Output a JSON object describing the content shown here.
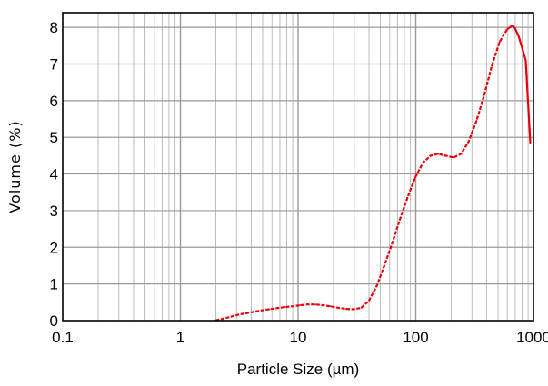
{
  "chart_data": {
    "type": "line",
    "title": "",
    "xlabel": "Particle Size (µm)",
    "ylabel": "Volume (%)",
    "x_scale": "log",
    "xlim": [
      0.1,
      1000
    ],
    "ylim": [
      0,
      8.4
    ],
    "grid": true,
    "x_ticks": [
      {
        "value": 0.1,
        "label": "0.1"
      },
      {
        "value": 1,
        "label": "1"
      },
      {
        "value": 10,
        "label": "10"
      },
      {
        "value": 100,
        "label": "100"
      },
      {
        "value": 1000,
        "label": "1000"
      }
    ],
    "y_ticks": [
      {
        "value": 0,
        "label": "0"
      },
      {
        "value": 1,
        "label": "1"
      },
      {
        "value": 2,
        "label": "2"
      },
      {
        "value": 3,
        "label": "3"
      },
      {
        "value": 4,
        "label": "4"
      },
      {
        "value": 5,
        "label": "5"
      },
      {
        "value": 6,
        "label": "6"
      },
      {
        "value": 7,
        "label": "7"
      },
      {
        "value": 8,
        "label": "8"
      }
    ],
    "series": [
      {
        "color": "#e8000b",
        "line_style": "dashed",
        "x": [
          2.0,
          2.3,
          2.7,
          3.1,
          3.6,
          4.2,
          4.9,
          5.7,
          6.6,
          7.7,
          8.9,
          10.4,
          12.0,
          14.0,
          16.3,
          18.9,
          22.0,
          25.6,
          29.7,
          34.5,
          40.1,
          46.6,
          54.1,
          62.9,
          73.1,
          84.9,
          98.7,
          114.7,
          133.3,
          154.8,
          179.9,
          209.1,
          243.0,
          282.4,
          328.1,
          381.3,
          443.1,
          514.9,
          598.4,
          662.0,
          695.4,
          750.0,
          808.1,
          860.0,
          939.1
        ],
        "y": [
          0.01,
          0.05,
          0.11,
          0.16,
          0.2,
          0.24,
          0.28,
          0.31,
          0.34,
          0.37,
          0.39,
          0.42,
          0.44,
          0.44,
          0.42,
          0.39,
          0.35,
          0.32,
          0.31,
          0.35,
          0.55,
          0.95,
          1.5,
          2.1,
          2.75,
          3.35,
          3.9,
          4.3,
          4.5,
          4.55,
          4.5,
          4.45,
          4.55,
          4.9,
          5.45,
          6.15,
          6.95,
          7.6,
          7.95,
          8.05,
          7.98,
          7.75,
          7.4,
          7.1,
          4.85
        ]
      }
    ]
  }
}
